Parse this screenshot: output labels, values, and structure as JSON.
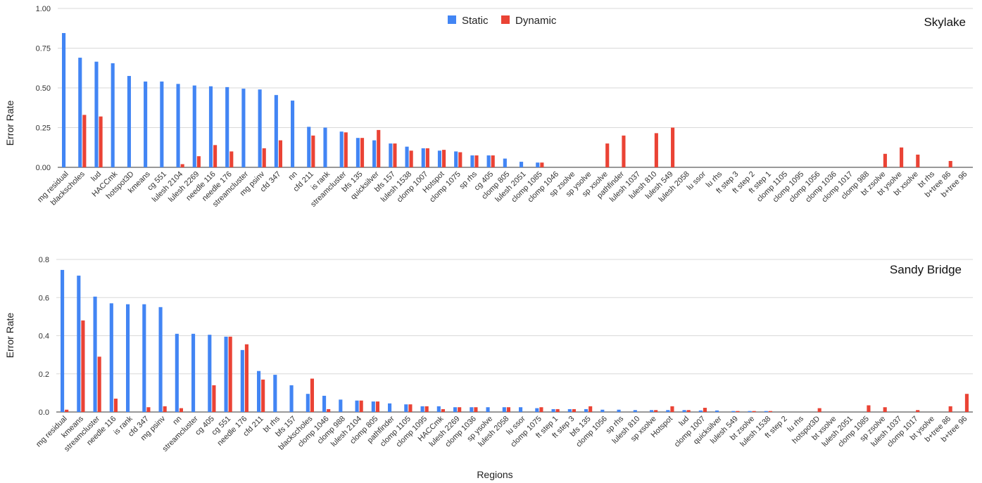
{
  "colors": {
    "static": "#4285f4",
    "dynamic": "#ea4335",
    "grid": "#d9d9d9",
    "axis": "#333333"
  },
  "legend": {
    "position": "top-center",
    "static_label": "Static",
    "dynamic_label": "Dynamic"
  },
  "xlabel": "Regions",
  "chart_data": [
    {
      "type": "bar",
      "title": "Skylake",
      "ylabel": "Error Rate",
      "ylim": [
        0,
        1
      ],
      "ticks": [
        "0.00",
        "0.25",
        "0.50",
        "0.75",
        "1.00"
      ],
      "grid": true,
      "categories": [
        "mg residual",
        "blackscholes",
        "lud",
        "HACCmk",
        "hotspot3D",
        "kmeans",
        "cg 551",
        "lulesh 2104",
        "lulesh 2269",
        "needle 116",
        "needle 176",
        "streamcluster",
        "mg psinv",
        "cfd 347",
        "nn",
        "cfd 211",
        "is rank",
        "streamcluster",
        "bfs 135",
        "quicksilver",
        "bfs 157",
        "lulesh 1538",
        "clomp 1007",
        "Hotspot",
        "clomp 1075",
        "sp rhs",
        "cg 405",
        "clomp 805",
        "lulesh 2051",
        "clomp 1085",
        "clomp 1046",
        "sp zsolve",
        "sp ysolve",
        "sp xsolve",
        "pathfinder",
        "lulesh 1037",
        "lulesh 810",
        "lulesh 549",
        "lulesh 2058",
        "lu ssor",
        "lu rhs",
        "ft step 3",
        "ft step 2",
        "ft step 1",
        "clomp 1105",
        "clomp 1095",
        "clomp 1056",
        "clomp 1036",
        "clomp 1017",
        "clomp 988",
        "bt zsolve",
        "bt ysolve",
        "bt xsolve",
        "bt rhs",
        "b+tree 86",
        "b+tree 96"
      ],
      "series": [
        {
          "name": "Static",
          "values": [
            0.845,
            0.69,
            0.665,
            0.655,
            0.575,
            0.54,
            0.54,
            0.525,
            0.515,
            0.51,
            0.505,
            0.495,
            0.49,
            0.455,
            0.42,
            0.255,
            0.25,
            0.225,
            0.185,
            0.17,
            0.15,
            0.13,
            0.12,
            0.105,
            0.1,
            0.075,
            0.075,
            0.055,
            0.035,
            0.03,
            0,
            0,
            0,
            0,
            0,
            0,
            0,
            0,
            0,
            0,
            0,
            0,
            0,
            0,
            0,
            0,
            0,
            0,
            0,
            0,
            0,
            0,
            0,
            0,
            0,
            0
          ]
        },
        {
          "name": "Dynamic",
          "values": [
            0,
            0.33,
            0.32,
            0,
            0,
            0,
            0,
            0.02,
            0.07,
            0.14,
            0.1,
            0,
            0.12,
            0.17,
            0,
            0.2,
            0,
            0.22,
            0.185,
            0.235,
            0.15,
            0.105,
            0.12,
            0.11,
            0.095,
            0.075,
            0.075,
            0,
            0,
            0.03,
            0,
            0,
            0,
            0.15,
            0.2,
            0,
            0.215,
            0.25,
            0,
            0,
            0,
            0,
            0,
            0,
            0,
            0,
            0,
            0,
            0,
            0,
            0.085,
            0.125,
            0.08,
            0,
            0.04,
            0
          ]
        }
      ]
    },
    {
      "type": "bar",
      "title": "Sandy Bridge",
      "ylabel": "Error Rate",
      "ylim": [
        0,
        0.8
      ],
      "ticks": [
        "0.0",
        "0.2",
        "0.4",
        "0.6",
        "0.8"
      ],
      "grid": true,
      "categories": [
        "mg residual",
        "kmeans",
        "streamcluster",
        "needle 116",
        "is rank",
        "cfd 347",
        "mg psinv",
        "nn",
        "streamcluster",
        "cg 405",
        "cg 551",
        "needle 176",
        "cfd 211",
        "bt rhs",
        "bfs 157",
        "blackscholes",
        "clomp 1046",
        "clomp 988",
        "lulesh 2104",
        "clomp 805",
        "pathfinder",
        "clomp 1105",
        "clomp 1095",
        "HACCmk",
        "lulesh 2269",
        "clomp 1036",
        "sp ysolve",
        "lulesh 2058",
        "lu ssor",
        "clomp 1075",
        "ft step 1",
        "ft step 3",
        "bfs 135",
        "clomp 1056",
        "sp rhs",
        "lulesh 810",
        "sp xsolve",
        "Hotspot",
        "lud",
        "clomp 1007",
        "quicksilver",
        "lulesh 549",
        "bt zsolve",
        "lulesh 1538",
        "ft step 2",
        "lu rhs",
        "hotspot3D",
        "bt xsolve",
        "lulesh 2051",
        "clomp 1085",
        "sp zsolve",
        "lulesh 1037",
        "clomp 1017",
        "bt ysolve",
        "b+tree 86",
        "b+tree 96"
      ],
      "series": [
        {
          "name": "Static",
          "values": [
            0.745,
            0.715,
            0.605,
            0.57,
            0.565,
            0.565,
            0.55,
            0.41,
            0.41,
            0.405,
            0.395,
            0.325,
            0.215,
            0.195,
            0.14,
            0.095,
            0.085,
            0.065,
            0.06,
            0.055,
            0.045,
            0.04,
            0.03,
            0.03,
            0.025,
            0.025,
            0.025,
            0.025,
            0.025,
            0.02,
            0.015,
            0.015,
            0.015,
            0.012,
            0.012,
            0.01,
            0.01,
            0.01,
            0.01,
            0.008,
            0.008,
            0.005,
            0.005,
            0.005,
            0,
            0,
            0,
            0,
            0,
            0,
            0,
            0,
            0,
            0,
            0,
            0
          ]
        },
        {
          "name": "Dynamic",
          "values": [
            0.012,
            0.48,
            0.29,
            0.07,
            0,
            0.025,
            0.03,
            0.02,
            0,
            0.14,
            0.395,
            0.355,
            0.17,
            0,
            0,
            0.175,
            0.015,
            0,
            0.06,
            0.055,
            0,
            0.04,
            0.03,
            0.015,
            0.025,
            0.025,
            0,
            0.025,
            0,
            0.025,
            0.015,
            0.015,
            0.03,
            0,
            0,
            0,
            0.01,
            0.03,
            0.01,
            0.022,
            0,
            0.005,
            0.005,
            0.005,
            0,
            0,
            0.02,
            0,
            0,
            0.035,
            0.025,
            0,
            0.01,
            0,
            0.03,
            0.095
          ]
        }
      ]
    }
  ]
}
